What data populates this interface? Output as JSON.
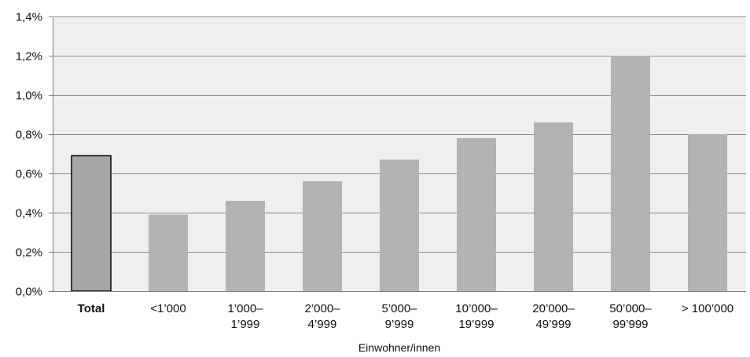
{
  "chart_data": {
    "type": "bar",
    "title": "",
    "xlabel": "Einwohner/innen",
    "ylabel": "",
    "categories": [
      [
        "Total"
      ],
      [
        "<1’000"
      ],
      [
        "1’000–",
        "1’999"
      ],
      [
        "2’000–",
        "4’999"
      ],
      [
        "5’000–",
        "9’999"
      ],
      [
        "10’000–",
        "19’999"
      ],
      [
        "20’000–",
        "49’999"
      ],
      [
        "50’000–",
        "99’999"
      ],
      [
        "> 100’000"
      ]
    ],
    "values": [
      0.69,
      0.39,
      0.46,
      0.56,
      0.67,
      0.78,
      0.86,
      1.2,
      0.8
    ],
    "highlight_index": 0,
    "ylim": [
      0,
      1.4
    ],
    "yticks": [
      {
        "value": 0.0,
        "label": "0,0%"
      },
      {
        "value": 0.2,
        "label": "0,2%"
      },
      {
        "value": 0.4,
        "label": "0,4%"
      },
      {
        "value": 0.6,
        "label": "0,6%"
      },
      {
        "value": 0.8,
        "label": "0,8%"
      },
      {
        "value": 1.0,
        "label": "1,0%"
      },
      {
        "value": 1.2,
        "label": "1,2%"
      },
      {
        "value": 1.4,
        "label": "1,4%"
      }
    ],
    "grid": true,
    "legend": "none",
    "colors": {
      "plot_background": "#efefef",
      "bar_fill": "#b3b3b3",
      "highlight_fill": "#a6a6a6",
      "highlight_stroke": "#000000",
      "gridline": "#8c8c8c",
      "axis": "#7f7f7f"
    }
  }
}
